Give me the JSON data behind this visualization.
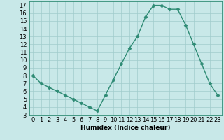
{
  "x": [
    0,
    1,
    2,
    3,
    4,
    5,
    6,
    7,
    8,
    9,
    10,
    11,
    12,
    13,
    14,
    15,
    16,
    17,
    18,
    19,
    20,
    21,
    22,
    23
  ],
  "y": [
    8,
    7,
    6.5,
    6,
    5.5,
    5,
    4.5,
    4,
    3.5,
    5.5,
    7.5,
    9.5,
    11.5,
    13,
    15.5,
    17,
    17,
    16.5,
    16.5,
    14.5,
    12,
    9.5,
    7,
    5.5
  ],
  "xlabel": "Humidex (Indice chaleur)",
  "xlim": [
    -0.5,
    23.5
  ],
  "ylim": [
    3,
    17.5
  ],
  "yticks": [
    3,
    4,
    5,
    6,
    7,
    8,
    9,
    10,
    11,
    12,
    13,
    14,
    15,
    16,
    17
  ],
  "xticks": [
    0,
    1,
    2,
    3,
    4,
    5,
    6,
    7,
    8,
    9,
    10,
    11,
    12,
    13,
    14,
    15,
    16,
    17,
    18,
    19,
    20,
    21,
    22,
    23
  ],
  "line_color": "#2e8b74",
  "marker_color": "#2e8b74",
  "bg_color": "#c8e8e8",
  "grid_color": "#a0cccc",
  "xlabel_fontsize": 6.5,
  "tick_fontsize": 6.0,
  "line_width": 1.0,
  "marker_size": 2.5
}
